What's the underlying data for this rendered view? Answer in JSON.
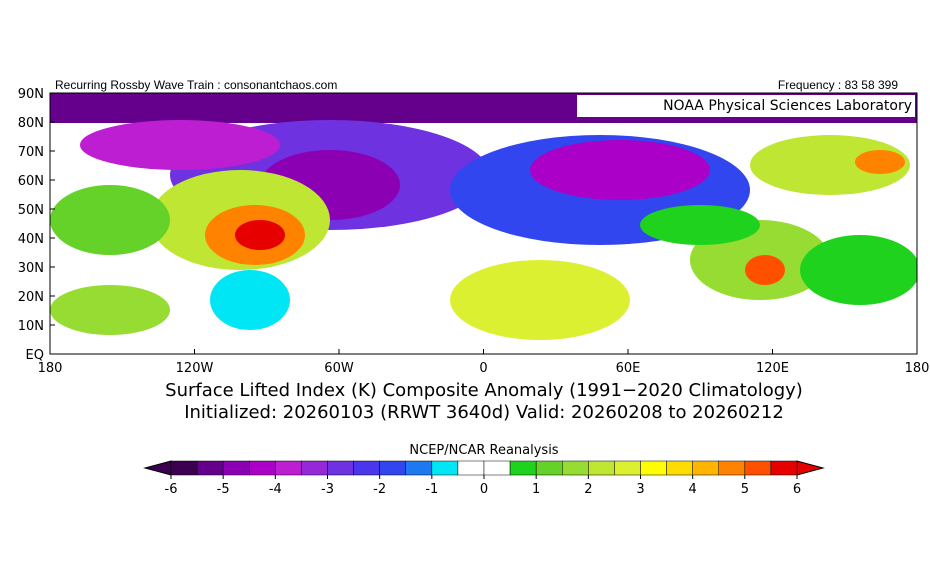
{
  "header": {
    "left": "Recurring Rossby Wave Train : consonantchaos.com",
    "right": "Frequency : 83 58 399"
  },
  "map": {
    "source": "NOAA Physical Sciences Laboratory",
    "lat_labels": [
      "90N",
      "80N",
      "70N",
      "60N",
      "50N",
      "40N",
      "30N",
      "20N",
      "10N",
      "EQ"
    ],
    "lon_labels": [
      "180",
      "120W",
      "60W",
      "0",
      "60E",
      "120E",
      "180"
    ]
  },
  "title": {
    "line1": "Surface Lifted Index (K) Composite Anomaly (1991−2020 Climatology)",
    "line2": "Initialized: 20260103 (RRWT 3640d) Valid: 20260208 to 20260212"
  },
  "colorbar": {
    "label": "NCEP/NCAR Reanalysis",
    "ticks": [
      -6,
      -5,
      -4,
      -3,
      -2,
      -1,
      0,
      1,
      2,
      3,
      4,
      5,
      6
    ],
    "colors": [
      "#3c0050",
      "#64008c",
      "#8c00b4",
      "#aa00c8",
      "#be1ed2",
      "#9628d7",
      "#6e32e1",
      "#4b37eb",
      "#3246f0",
      "#1e78f0",
      "#00e6f5",
      "#ffffff",
      "#ffffff",
      "#1ed21e",
      "#64d228",
      "#96dc32",
      "#bee632",
      "#dcf032",
      "#ffff00",
      "#ffdc00",
      "#ffb400",
      "#ff8200",
      "#ff5000",
      "#e60000"
    ]
  }
}
